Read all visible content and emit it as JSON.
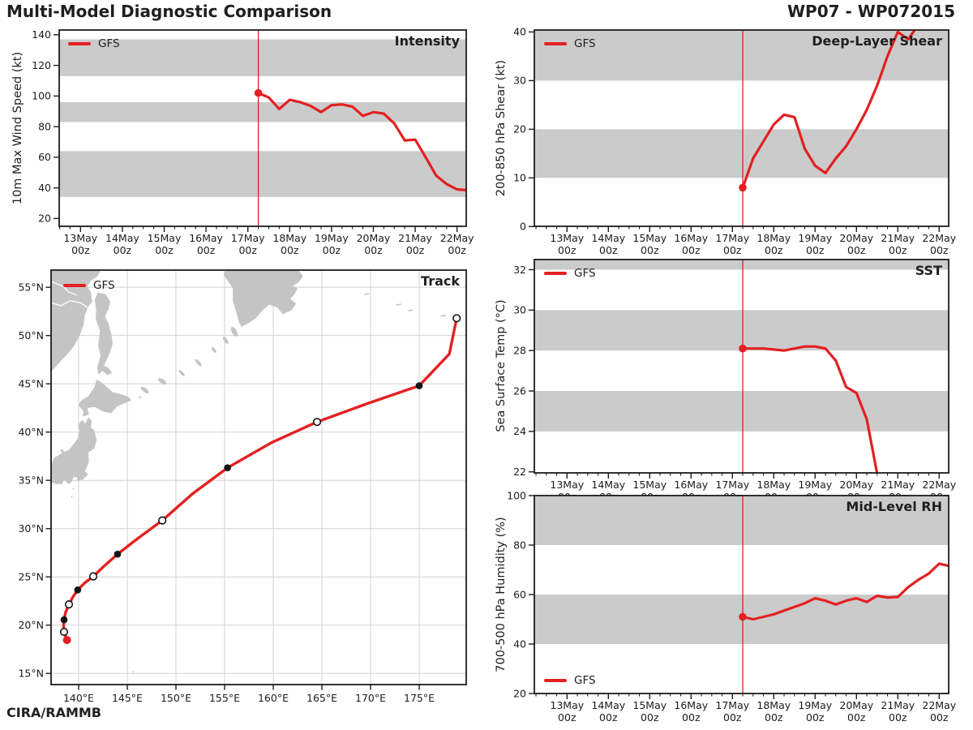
{
  "header": {
    "title": "Multi-Model Diagnostic Comparison",
    "storm_id": "WP07 - WP072015",
    "credit": "CIRA/RAMMB"
  },
  "legend": {
    "label": "GFS"
  },
  "colors": {
    "line": "#e32022",
    "band": "#cbcbcb",
    "land": "#c4c4c4",
    "grid": "#d2d2d2",
    "frame": "#1c1c1c",
    "text": "#1c1c1c",
    "marker_filled": "#141414",
    "marker_open_fill": "#ffffff"
  },
  "time_axis": {
    "major_labels": [
      "13May",
      "14May",
      "15May",
      "16May",
      "17May",
      "18May",
      "19May",
      "20May",
      "21May",
      "22May"
    ],
    "sub_label": "00z",
    "minor_step_days": 0.25,
    "current_time_days": 4.25,
    "current_time_label": "17May 06z"
  },
  "chart_data": [
    {
      "id": "intensity",
      "type": "line",
      "title": "Intensity",
      "ylabel": "10m Max Wind Speed (kt)",
      "yticks": [
        20,
        40,
        60,
        80,
        100,
        120,
        140
      ],
      "ylim": [
        14.9,
        143.1
      ],
      "xlim_days": [
        -0.51,
        9.22
      ],
      "shaded_bands": [
        [
          34,
          64
        ],
        [
          83,
          96
        ],
        [
          113,
          137
        ]
      ],
      "series": [
        {
          "name": "GFS",
          "start_day": 4.25,
          "step_days": 0.25,
          "values": [
            102,
            99,
            91.5,
            97.5,
            96,
            93.5,
            89.5,
            94,
            94.5,
            93,
            87,
            89.5,
            88.5,
            82,
            71,
            71.5,
            60,
            48,
            42.5,
            39,
            38.5,
            41
          ]
        }
      ]
    },
    {
      "id": "shear",
      "type": "line",
      "title": "Deep-Layer Shear",
      "ylabel": "200-850 hPa Shear (kt)",
      "yticks": [
        0,
        10,
        20,
        30,
        40
      ],
      "ylim": [
        0.05,
        40.4
      ],
      "xlim_days": [
        -0.79,
        9.23
      ],
      "shaded_bands": [
        [
          10,
          20
        ],
        [
          30,
          40.4
        ]
      ],
      "series": [
        {
          "name": "GFS",
          "start_day": 4.25,
          "step_days": 0.25,
          "values": [
            8,
            14,
            17.5,
            21,
            23,
            22.5,
            16,
            12.5,
            11,
            14,
            16.5,
            20,
            24,
            29,
            35,
            40,
            38.5,
            41.5
          ]
        }
      ]
    },
    {
      "id": "sst",
      "type": "line",
      "title": "SST",
      "ylabel": "Sea Surface Temp (°C)",
      "yticks": [
        22,
        24,
        26,
        28,
        30,
        32
      ],
      "ylim": [
        21.95,
        32.5
      ],
      "xlim_days": [
        -0.79,
        9.23
      ],
      "shaded_bands": [
        [
          24,
          26
        ],
        [
          28,
          30
        ],
        [
          32,
          32.5
        ]
      ],
      "series": [
        {
          "name": "GFS",
          "start_day": 4.25,
          "step_days": 0.25,
          "values": [
            28.1,
            28.1,
            28.1,
            28.05,
            28.0,
            28.1,
            28.2,
            28.2,
            28.1,
            27.5,
            26.2,
            25.9,
            24.6,
            21.9
          ]
        }
      ]
    },
    {
      "id": "rh",
      "type": "line",
      "title": "Mid-Level RH",
      "ylabel": "700-500 hPa Humidity (%)",
      "yticks": [
        20,
        40,
        60,
        80,
        100
      ],
      "ylim": [
        20,
        100
      ],
      "xlim_days": [
        -0.79,
        9.23
      ],
      "shaded_bands": [
        [
          40,
          60
        ],
        [
          80,
          100
        ]
      ],
      "series": [
        {
          "name": "GFS",
          "start_day": 4.25,
          "step_days": 0.25,
          "values": [
            51,
            50,
            51,
            52,
            53.5,
            55,
            56.5,
            58.5,
            57.5,
            56,
            57.5,
            58.5,
            57,
            59.5,
            58.8,
            59,
            63,
            66,
            68.5,
            72.5,
            71.5,
            71
          ]
        }
      ]
    },
    {
      "id": "track",
      "type": "map",
      "title": "Track",
      "lonlim": [
        137.17,
        179.83
      ],
      "latlim": [
        13.84,
        56.78
      ],
      "lon_ticks": [
        140,
        145,
        150,
        155,
        160,
        165,
        170,
        175
      ],
      "lon_tick_labels": [
        "140°E",
        "145°E",
        "150°E",
        "155°E",
        "160°E",
        "165°E",
        "170°E",
        "175°E"
      ],
      "lat_ticks": [
        15,
        20,
        25,
        30,
        35,
        40,
        45,
        50,
        55
      ],
      "lat_tick_labels": [
        "15°N",
        "20°N",
        "25°N",
        "30°N",
        "35°N",
        "40°N",
        "45°N",
        "50°N",
        "55°N"
      ],
      "track": {
        "name": "GFS",
        "points": [
          {
            "lon": 138.8,
            "lat": 18.45,
            "marker": "current"
          },
          {
            "lon": 138.5,
            "lat": 19.3,
            "marker": "open"
          },
          {
            "lon": 138.45,
            "lat": 19.9,
            "marker": null
          },
          {
            "lon": 138.5,
            "lat": 20.55,
            "marker": "filled"
          },
          {
            "lon": 138.65,
            "lat": 21.3,
            "marker": null
          },
          {
            "lon": 139.0,
            "lat": 22.15,
            "marker": "open"
          },
          {
            "lon": 139.4,
            "lat": 22.9,
            "marker": null
          },
          {
            "lon": 139.9,
            "lat": 23.65,
            "marker": "filled"
          },
          {
            "lon": 140.6,
            "lat": 24.35,
            "marker": null
          },
          {
            "lon": 141.5,
            "lat": 25.05,
            "marker": "open"
          },
          {
            "lon": 142.6,
            "lat": 26.1,
            "marker": null
          },
          {
            "lon": 144.0,
            "lat": 27.35,
            "marker": "filled"
          },
          {
            "lon": 146.1,
            "lat": 29.0,
            "marker": null
          },
          {
            "lon": 148.6,
            "lat": 30.85,
            "marker": "open"
          },
          {
            "lon": 151.7,
            "lat": 33.6,
            "marker": null
          },
          {
            "lon": 155.3,
            "lat": 36.3,
            "marker": "filled"
          },
          {
            "lon": 159.8,
            "lat": 38.9,
            "marker": null
          },
          {
            "lon": 164.5,
            "lat": 41.05,
            "marker": "open"
          },
          {
            "lon": 169.8,
            "lat": 43.0,
            "marker": null
          },
          {
            "lon": 175.0,
            "lat": 44.8,
            "marker": "filled"
          },
          {
            "lon": 178.1,
            "lat": 48.1,
            "marker": null
          },
          {
            "lon": 178.85,
            "lat": 51.8,
            "marker": "open"
          }
        ]
      },
      "land": {
        "polygons": {
          "continent": [
            [
              137.17,
              56.78
            ],
            [
              142.3,
              56.78
            ],
            [
              141.9,
              56.1
            ],
            [
              141.25,
              55.7
            ],
            [
              140.9,
              55.1
            ],
            [
              141.25,
              54.5
            ],
            [
              141.4,
              53.5
            ],
            [
              141.05,
              53.1
            ],
            [
              140.65,
              52.2
            ],
            [
              140.5,
              51.1
            ],
            [
              140.1,
              50.0
            ],
            [
              139.65,
              49.1
            ],
            [
              138.95,
              48.2
            ],
            [
              138.25,
              47.45
            ],
            [
              137.5,
              46.6
            ],
            [
              137.17,
              46.25
            ]
          ],
          "sakhalin": [
            [
              141.95,
              54.45
            ],
            [
              142.75,
              54.3
            ],
            [
              143.25,
              53.5
            ],
            [
              143.05,
              52.7
            ],
            [
              142.7,
              52.0
            ],
            [
              143.05,
              51.3
            ],
            [
              143.35,
              50.2
            ],
            [
              143.5,
              49.2
            ],
            [
              143.25,
              48.3
            ],
            [
              142.6,
              46.9
            ],
            [
              143.05,
              46.65
            ],
            [
              143.45,
              46.15
            ],
            [
              142.95,
              45.9
            ],
            [
              142.45,
              46.35
            ],
            [
              142.05,
              45.95
            ],
            [
              141.9,
              46.7
            ],
            [
              142.25,
              47.9
            ],
            [
              142.0,
              49.0
            ],
            [
              142.2,
              50.5
            ],
            [
              141.75,
              51.7
            ],
            [
              141.8,
              52.7
            ],
            [
              141.65,
              53.7
            ]
          ],
          "hokkaido": [
            [
              139.95,
              42.85
            ],
            [
              140.5,
              42.15
            ],
            [
              140.4,
              41.6
            ],
            [
              141.05,
              41.8
            ],
            [
              140.9,
              42.5
            ],
            [
              141.65,
              42.6
            ],
            [
              142.45,
              42.15
            ],
            [
              143.3,
              41.95
            ],
            [
              143.95,
              42.65
            ],
            [
              145.45,
              43.3
            ],
            [
              145.1,
              43.65
            ],
            [
              144.3,
              43.95
            ],
            [
              143.45,
              44.15
            ],
            [
              142.55,
              45.0
            ],
            [
              141.85,
              45.45
            ],
            [
              141.65,
              44.7
            ],
            [
              140.95,
              43.65
            ],
            [
              140.35,
              43.35
            ]
          ],
          "honshu": [
            [
              141.0,
              41.55
            ],
            [
              141.35,
              41.15
            ],
            [
              141.25,
              40.45
            ],
            [
              141.6,
              40.2
            ],
            [
              141.85,
              39.2
            ],
            [
              141.6,
              38.3
            ],
            [
              141.0,
              37.9
            ],
            [
              141.05,
              36.9
            ],
            [
              140.65,
              35.9
            ],
            [
              141.0,
              35.65
            ],
            [
              140.45,
              35.1
            ],
            [
              139.9,
              34.9
            ],
            [
              139.8,
              35.35
            ],
            [
              139.45,
              35.3
            ],
            [
              139.3,
              34.85
            ],
            [
              138.95,
              34.6
            ],
            [
              138.55,
              35.05
            ],
            [
              138.25,
              34.6
            ],
            [
              137.6,
              34.65
            ],
            [
              137.17,
              34.8
            ],
            [
              137.17,
              36.6
            ],
            [
              137.5,
              37.35
            ],
            [
              138.35,
              37.85
            ],
            [
              139.05,
              38.2
            ],
            [
              139.9,
              39.3
            ],
            [
              140.1,
              40.2
            ],
            [
              139.9,
              40.65
            ],
            [
              140.35,
              41.25
            ],
            [
              140.7,
              40.9
            ]
          ],
          "kamchatka": [
            [
              155.75,
              56.78
            ],
            [
              162.6,
              56.78
            ],
            [
              163.05,
              56.15
            ],
            [
              162.6,
              55.5
            ],
            [
              162.0,
              55.15
            ],
            [
              162.5,
              54.9
            ],
            [
              162.2,
              54.3
            ],
            [
              161.75,
              53.8
            ],
            [
              162.35,
              53.3
            ],
            [
              161.9,
              52.65
            ],
            [
              161.0,
              52.2
            ],
            [
              160.4,
              52.9
            ],
            [
              159.6,
              53.2
            ],
            [
              158.8,
              52.5
            ],
            [
              158.2,
              51.8
            ],
            [
              157.4,
              51.25
            ],
            [
              156.7,
              50.9
            ],
            [
              156.45,
              51.45
            ],
            [
              156.2,
              52.4
            ],
            [
              155.85,
              53.6
            ],
            [
              155.85,
              54.9
            ],
            [
              155.3,
              55.7
            ],
            [
              154.9,
              56.3
            ],
            [
              155.05,
              56.78
            ]
          ]
        },
        "islands": [
          [
            156.0,
            50.4,
            0.5,
            1.1,
            -30
          ],
          [
            155.1,
            49.5,
            0.35,
            0.85,
            -35
          ],
          [
            153.9,
            48.5,
            0.3,
            0.7,
            -40
          ],
          [
            152.3,
            47.2,
            0.35,
            0.9,
            -42
          ],
          [
            150.6,
            46.1,
            0.3,
            0.8,
            -45
          ],
          [
            148.6,
            45.25,
            0.45,
            1.0,
            -55
          ],
          [
            146.8,
            44.35,
            0.4,
            1.0,
            -52
          ],
          [
            146.3,
            43.6,
            0.3,
            0.15,
            -20
          ],
          [
            169.6,
            54.3,
            0.55,
            0.15,
            -12
          ],
          [
            172.9,
            53.2,
            0.6,
            0.15,
            -10
          ],
          [
            174.1,
            52.6,
            0.5,
            0.15,
            -10
          ],
          [
            177.5,
            52.05,
            0.6,
            0.15,
            -8
          ],
          [
            138.3,
            38.05,
            0.28,
            0.4,
            -40
          ],
          [
            139.45,
            34.1,
            0.14,
            0.2,
            0
          ],
          [
            139.3,
            33.3,
            0.12,
            0.18,
            0
          ],
          [
            145.6,
            15.15,
            0.22,
            0.12,
            0
          ]
        ],
        "rivers": [
          [
            [
              137.17,
              53.4
            ],
            [
              138.2,
              53.1
            ],
            [
              139.1,
              53.6
            ],
            [
              140.2,
              53.4
            ],
            [
              140.9,
              52.9
            ]
          ],
          [
            [
              137.17,
              55.6
            ],
            [
              138.4,
              55.1
            ],
            [
              139.0,
              54.5
            ],
            [
              139.8,
              54.2
            ]
          ]
        ]
      }
    }
  ]
}
